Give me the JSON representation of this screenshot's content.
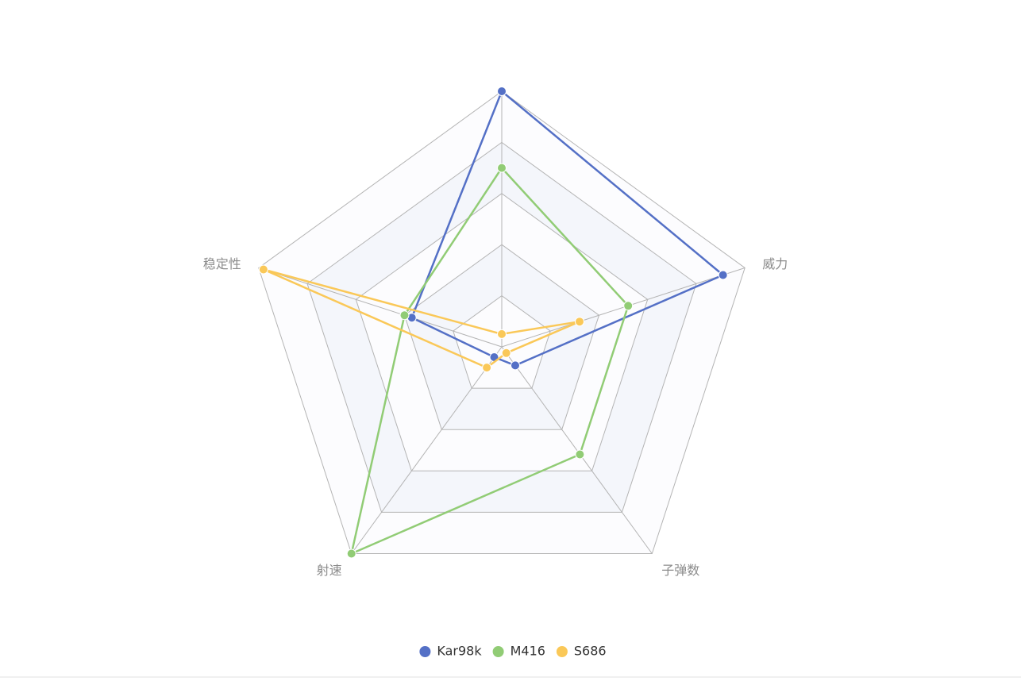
{
  "chart_data": {
    "type": "radar",
    "indicators": [
      {
        "name": "",
        "max": 100
      },
      {
        "name": "威力",
        "max": 100
      },
      {
        "name": "子弹数",
        "max": 100
      },
      {
        "name": "射速",
        "max": 100
      },
      {
        "name": "稳定性",
        "max": 100
      }
    ],
    "series": [
      {
        "name": "Kar98k",
        "color": "#5470c6",
        "values": [
          100,
          91,
          9,
          5,
          37
        ]
      },
      {
        "name": "M416",
        "color": "#91cc75",
        "values": [
          70,
          52,
          52,
          100,
          40
        ]
      },
      {
        "name": "S686",
        "color": "#fac858",
        "values": [
          5,
          32,
          3,
          10,
          98
        ]
      }
    ],
    "split_number": 5,
    "legend_position": "bottom-center"
  }
}
